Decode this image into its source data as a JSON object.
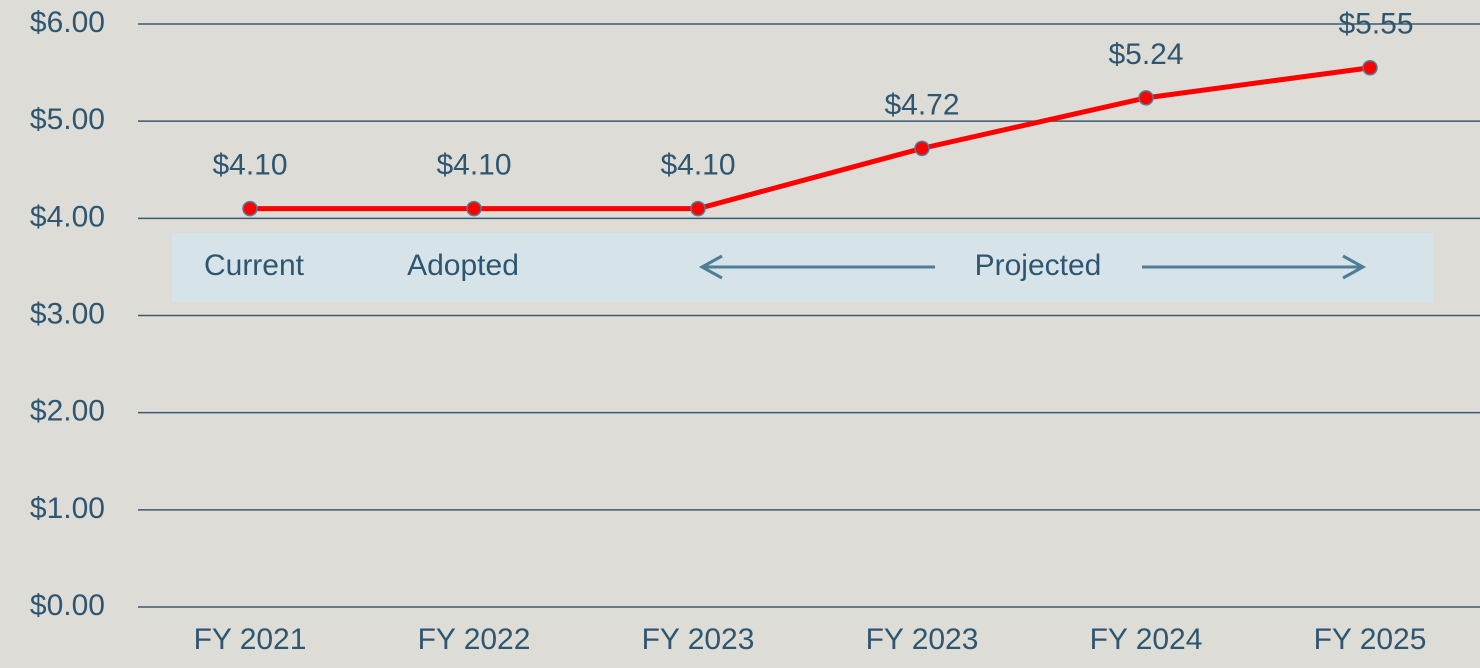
{
  "chart_data": {
    "type": "line",
    "categories": [
      "FY 2021",
      "FY 2022",
      "FY 2023",
      "FY 2023",
      "FY 2024",
      "FY 2025"
    ],
    "values": [
      4.1,
      4.1,
      4.1,
      4.72,
      5.24,
      5.55
    ],
    "value_labels": [
      "$4.10",
      "$4.10",
      "$4.10",
      "$4.72",
      "$5.24",
      "$5.55"
    ],
    "color": "#ff0000",
    "ylim": [
      0,
      6
    ],
    "yticks": [
      {
        "value": 0,
        "label": "$0.00"
      },
      {
        "value": 1,
        "label": "$1.00"
      },
      {
        "value": 2,
        "label": "$2.00"
      },
      {
        "value": 3,
        "label": "$3.00"
      },
      {
        "value": 4,
        "label": "$4.00"
      },
      {
        "value": 5,
        "label": "$5.00"
      },
      {
        "value": 6,
        "label": "$6.00"
      }
    ],
    "grid": true,
    "annotations": [
      "Current",
      "Adopted",
      "Projected"
    ]
  }
}
